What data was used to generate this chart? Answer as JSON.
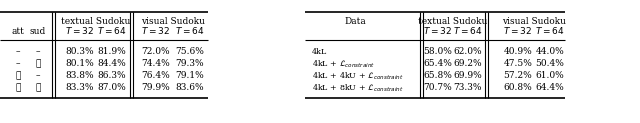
{
  "bg_color": "#ffffff",
  "text_color": "#000000",
  "fs": 6.5,
  "fs_small": 5.8,
  "left_table": {
    "rows": [
      [
        "–",
        "–",
        "80.3%",
        "81.9%",
        "72.0%",
        "75.6%"
      ],
      [
        "–",
        "✓",
        "80.1%",
        "84.4%",
        "74.4%",
        "79.3%"
      ],
      [
        "✓",
        "–",
        "83.8%",
        "86.3%",
        "76.4%",
        "79.1%"
      ],
      [
        "✓",
        "✓",
        "83.3%",
        "87.0%",
        "79.9%",
        "83.6%"
      ]
    ]
  },
  "right_table": {
    "rows": [
      [
        "58.0%",
        "62.0%",
        "40.9%",
        "44.0%"
      ],
      [
        "65.4%",
        "69.2%",
        "47.5%",
        "50.4%"
      ],
      [
        "65.8%",
        "69.9%",
        "57.2%",
        "61.0%"
      ],
      [
        "70.7%",
        "73.3%",
        "60.8%",
        "64.4%"
      ]
    ]
  }
}
